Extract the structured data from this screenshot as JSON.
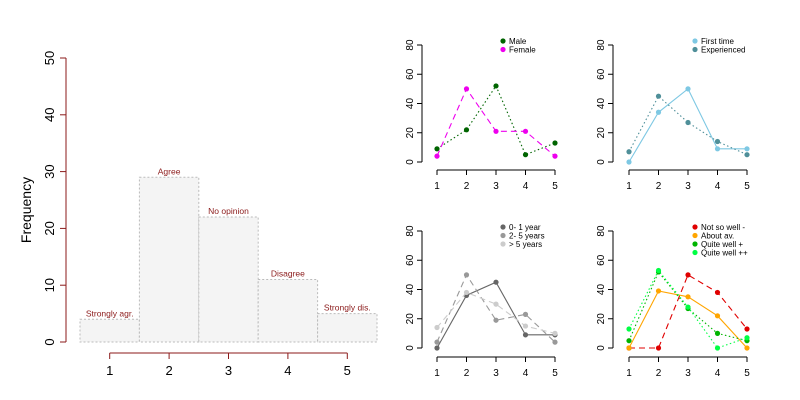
{
  "chart_data": [
    {
      "type": "bar",
      "categories": [
        "1",
        "2",
        "3",
        "4",
        "5"
      ],
      "values": [
        4,
        29,
        22,
        11,
        5
      ],
      "bar_labels": [
        "Strongly agr.",
        "Agree",
        "No opinion",
        "Disagree",
        "Strongly dis."
      ],
      "xlabel": "",
      "ylabel": "Frequency",
      "ylim": [
        0,
        50
      ],
      "yticks": [
        "0",
        "10",
        "20",
        "30",
        "40",
        "50"
      ],
      "xticks": [
        "1",
        "2",
        "3",
        "4",
        "5"
      ],
      "bar_fill": "#f4f4f4",
      "bar_stroke": "#bbbbbb",
      "label_color": "#8b1a1a",
      "axis_color": "#8b1a1a",
      "grid": false
    },
    {
      "type": "line",
      "x": [
        1,
        2,
        3,
        4,
        5
      ],
      "ylim": [
        0,
        80
      ],
      "yticks": [
        "0",
        "20",
        "40",
        "60",
        "80"
      ],
      "xticks": [
        "1",
        "2",
        "3",
        "4",
        "5"
      ],
      "legend_position": "top-right",
      "series": [
        {
          "name": "Male",
          "values": [
            9,
            22,
            52,
            5,
            13
          ],
          "color": "#006400",
          "dash": "dotted"
        },
        {
          "name": "Female",
          "values": [
            4,
            50,
            21,
            21,
            4
          ],
          "color": "#ee00ee",
          "dash": "dashed"
        }
      ]
    },
    {
      "type": "line",
      "x": [
        1,
        2,
        3,
        4,
        5
      ],
      "ylim": [
        0,
        80
      ],
      "yticks": [
        "0",
        "20",
        "40",
        "60",
        "80"
      ],
      "xticks": [
        "1",
        "2",
        "3",
        "4",
        "5"
      ],
      "legend_position": "top-right",
      "series": [
        {
          "name": "First time",
          "values": [
            0,
            34,
            50,
            9,
            9
          ],
          "color": "#7ec8e3",
          "dash": "solid"
        },
        {
          "name": "Experienced",
          "values": [
            7,
            45,
            27,
            14,
            5
          ],
          "color": "#4f8f99",
          "dash": "dotted"
        }
      ]
    },
    {
      "type": "line",
      "x": [
        1,
        2,
        3,
        4,
        5
      ],
      "ylim": [
        0,
        80
      ],
      "yticks": [
        "0",
        "20",
        "40",
        "60",
        "80"
      ],
      "xticks": [
        "1",
        "2",
        "3",
        "4",
        "5"
      ],
      "legend_position": "top-right",
      "series": [
        {
          "name": "0- 1 year",
          "values": [
            0,
            36,
            45,
            9,
            9
          ],
          "color": "#666666",
          "dash": "solid"
        },
        {
          "name": "2- 5 years",
          "values": [
            4,
            50,
            19,
            23,
            4
          ],
          "color": "#999999",
          "dash": "dashed"
        },
        {
          "name": "> 5 years",
          "values": [
            14,
            38,
            30,
            15,
            10
          ],
          "color": "#cccccc",
          "dash": "dashed"
        }
      ]
    },
    {
      "type": "line",
      "x": [
        1,
        2,
        3,
        4,
        5
      ],
      "ylim": [
        0,
        80
      ],
      "yticks": [
        "0",
        "20",
        "40",
        "60",
        "80"
      ],
      "xticks": [
        "1",
        "2",
        "3",
        "4",
        "5"
      ],
      "legend_position": "top-right",
      "series": [
        {
          "name": "Not so well -",
          "values": [
            0,
            0,
            50,
            38,
            13
          ],
          "color": "#e00000",
          "dash": "dashed"
        },
        {
          "name": "About av.",
          "values": [
            0,
            39,
            35,
            22,
            0
          ],
          "color": "#ffa500",
          "dash": "solid"
        },
        {
          "name": "Quite well +",
          "values": [
            5,
            52,
            27,
            10,
            5
          ],
          "color": "#00b400",
          "dash": "dotted"
        },
        {
          "name": "Quite well ++",
          "values": [
            13,
            53,
            28,
            0,
            7
          ],
          "color": "#00ff44",
          "dash": "dotted"
        }
      ]
    }
  ]
}
